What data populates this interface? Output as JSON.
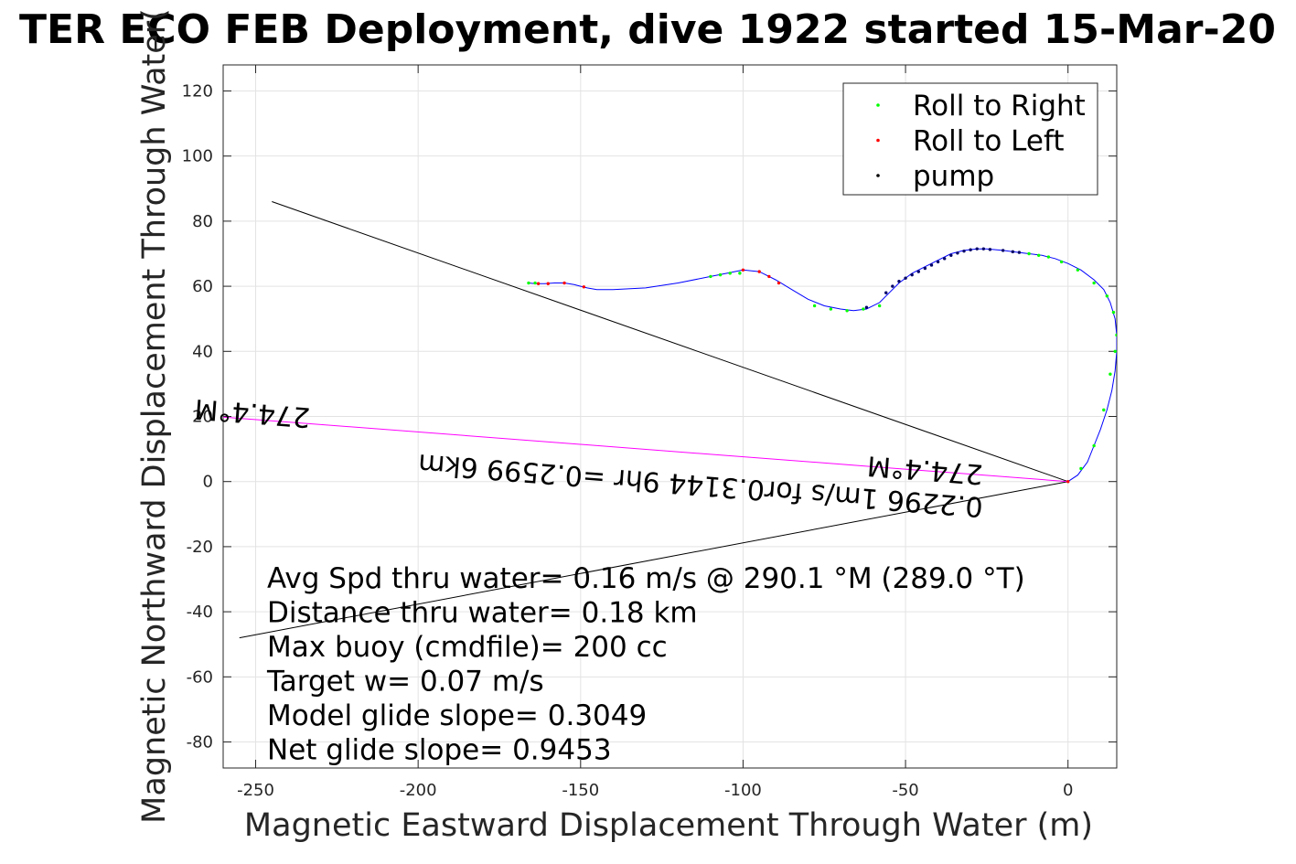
{
  "chart_data": {
    "type": "line",
    "title": "TER ECO FEB Deployment, dive 1922 started 15-Mar-20",
    "xlabel": "Magnetic Eastward Displacement Through Water (m)",
    "ylabel": "Magnetic Northward Displacement Through Water(",
    "xlim": [
      -260,
      15
    ],
    "ylim": [
      -88,
      128
    ],
    "xticks": [
      -250,
      -200,
      -150,
      -100,
      -50,
      0
    ],
    "yticks": [
      -80,
      -60,
      -40,
      -20,
      0,
      20,
      40,
      60,
      80,
      100,
      120
    ],
    "grid": true,
    "legend": {
      "placement": "top-right",
      "entries": [
        {
          "label": "Roll to Right",
          "color": "#00ff00"
        },
        {
          "label": "Roll to Left",
          "color": "#ff0000"
        },
        {
          "label": "pump",
          "color": "#000000"
        }
      ]
    },
    "track": {
      "color": "#0000ff",
      "x": [
        0,
        3,
        6,
        8,
        10,
        12,
        13.5,
        14.5,
        15,
        15,
        14.5,
        13,
        11,
        8,
        4,
        0,
        -4,
        -8,
        -12,
        -16,
        -20,
        -25,
        -28,
        -32,
        -36,
        -40,
        -44,
        -48,
        -52,
        -55,
        -58,
        -62,
        -66,
        -70,
        -75,
        -80,
        -85,
        -90,
        -95,
        -100,
        -105,
        -110,
        -120,
        -130,
        -140,
        -145,
        -148,
        -150,
        -152,
        -155,
        -158,
        -161,
        -164,
        -166
      ],
      "y": [
        0,
        2,
        6,
        11,
        16,
        22,
        28,
        34,
        40,
        45,
        50,
        55,
        59,
        62,
        65,
        67,
        68.5,
        69.5,
        70,
        70.5,
        71,
        71.5,
        71.5,
        71,
        70,
        68,
        66,
        64,
        61,
        58,
        55,
        53,
        52.5,
        53,
        54,
        56,
        59,
        62,
        64.5,
        65,
        64,
        63,
        61,
        59.5,
        59,
        59,
        59.5,
        60,
        60.5,
        61,
        61,
        60.8,
        60.8,
        61
      ]
    },
    "roll_right": {
      "x": [
        4,
        8,
        11,
        13,
        14.5,
        15,
        14,
        12,
        8,
        3,
        -2,
        -6,
        -9,
        -12,
        -58,
        -63,
        -68,
        -73,
        -78,
        -101,
        -104,
        -107,
        -110,
        -164,
        -166
      ],
      "y": [
        4,
        11,
        22,
        33,
        40,
        45,
        52,
        57,
        61,
        65,
        67.5,
        69,
        69.5,
        70,
        54,
        53,
        52.5,
        53,
        54,
        64,
        64,
        63.5,
        63,
        61,
        61
      ]
    },
    "roll_left": {
      "x": [
        0,
        -89,
        -92,
        -95,
        -100,
        -149,
        -155,
        -160,
        -163
      ],
      "y": [
        0,
        61,
        63,
        64.5,
        65,
        59.8,
        61,
        60.8,
        60.8
      ],
      "color": "#ff0000"
    },
    "pump": {
      "x": [
        -62,
        -56,
        -54,
        -52,
        -50,
        -48,
        -46,
        -44,
        -42,
        -40,
        -38,
        -36,
        -34,
        -32,
        -30,
        -28,
        -26,
        -24,
        -20,
        -17,
        -15
      ],
      "y": [
        53.5,
        58,
        60,
        61.5,
        62.5,
        63.5,
        64.5,
        65.5,
        66.5,
        67.5,
        68.5,
        69.5,
        70.2,
        70.8,
        71.2,
        71.5,
        71.5,
        71.3,
        71,
        70.6,
        70.4
      ]
    },
    "lines": [
      {
        "name": "",
        "color": "#000000",
        "x": [
          0,
          -245
        ],
        "y": [
          0,
          86
        ]
      },
      {
        "name": "",
        "color": "#000000",
        "x": [
          0,
          -255
        ],
        "y": [
          0,
          -48
        ]
      },
      {
        "name": "",
        "color": "#ff00ff",
        "x": [
          0,
          -260
        ],
        "y": [
          0,
          19.8
        ]
      }
    ],
    "annotations": [
      {
        "text": "274.4°M",
        "x": -233,
        "y": 22.5,
        "rotation": 184.4
      },
      {
        "text": "274.4°M",
        "x": -26,
        "y": 5,
        "rotation": 184.4
      },
      {
        "text": "0.2296 1m/s for0.3144 9hr =0.2599 6km",
        "x": -26,
        "y": -5,
        "rotation": 184.4
      }
    ],
    "stats": [
      "Avg Spd thru water=  0.16 m/s @ 290.1 °M (289.0 °T)",
      "Distance thru water=  0.18 km",
      "Max buoy (cmdfile)= 200 cc",
      "Target w= 0.07 m/s",
      "Model glide slope= 0.3049",
      "Net glide slope= 0.9453"
    ]
  }
}
